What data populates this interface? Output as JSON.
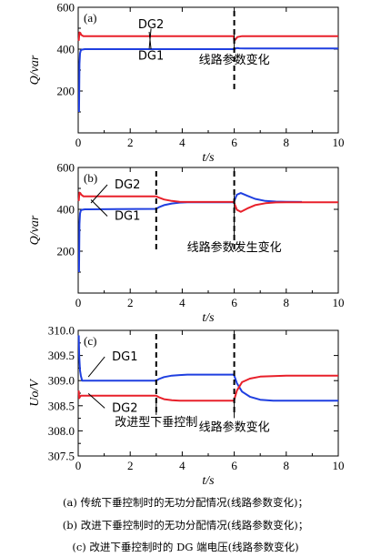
{
  "figure": {
    "captions": [
      "(a) 传统下垂控制时的无功分配情况(线路参数变化)；",
      "(b) 改进下垂控制时的无功分配情况(线路参数变化)；",
      "(c) 改进下垂控制时的 DG 端电压(线路参数变化)"
    ]
  },
  "colors": {
    "DG1": "#1f3fe0",
    "DG2": "#e8202a",
    "axis": "#000000"
  },
  "chart_data": [
    {
      "type": "line",
      "panel_label": "(a)",
      "xlabel": "t/s",
      "ylabel": "Q/var",
      "xlim": [
        0,
        10
      ],
      "ylim": [
        0,
        600
      ],
      "xticks": [
        0,
        2,
        4,
        6,
        8,
        10
      ],
      "yticks": [
        200,
        400,
        600
      ],
      "ytick_labels": [
        "200",
        "400",
        "600"
      ],
      "grid": false,
      "series": [
        {
          "name": "DG1",
          "x": [
            0.03,
            0.05,
            0.07,
            0.1,
            0.15,
            0.25,
            0.4,
            5.98,
            6.0,
            6.1,
            6.2,
            6.4,
            10
          ],
          "y": [
            100,
            330,
            380,
            395,
            398,
            400,
            400,
            400,
            400,
            405,
            404,
            403,
            403
          ]
        },
        {
          "name": "DG2",
          "x": [
            0.02,
            0.05,
            0.08,
            0.12,
            0.2,
            0.3,
            5.98,
            6.0,
            6.06,
            6.12,
            6.3,
            10
          ],
          "y": [
            440,
            480,
            478,
            468,
            462,
            462,
            462,
            440,
            448,
            458,
            462,
            462
          ]
        }
      ],
      "annotations": [
        {
          "text": "DG2",
          "x": 2.8,
          "y": 500
        },
        {
          "text": "DG1",
          "x": 2.8,
          "y": 350
        },
        {
          "text": "线路参数变化",
          "x": 6.0,
          "y": 330
        }
      ],
      "vlines": [
        6.0
      ]
    },
    {
      "type": "line",
      "panel_label": "(b)",
      "xlabel": "t/s",
      "ylabel": "Q/var",
      "xlim": [
        0,
        10
      ],
      "ylim": [
        0,
        600
      ],
      "xticks": [
        0,
        2,
        4,
        6,
        8,
        10
      ],
      "yticks": [
        200,
        400,
        600
      ],
      "ytick_labels": [
        "200",
        "400",
        "600"
      ],
      "grid": false,
      "series": [
        {
          "name": "DG1",
          "x": [
            0.03,
            0.05,
            0.07,
            0.1,
            0.15,
            0.25,
            0.4,
            3.0,
            3.1,
            3.3,
            3.6,
            3.9,
            4.2,
            5.98,
            6.0,
            6.1,
            6.25,
            6.5,
            6.8,
            7.2,
            7.6,
            8.0,
            8.6
          ],
          "y": [
            100,
            330,
            380,
            395,
            398,
            400,
            400,
            402,
            410,
            420,
            428,
            432,
            434,
            434,
            440,
            470,
            478,
            465,
            450,
            440,
            437,
            436,
            435
          ]
        },
        {
          "name": "DG2",
          "x": [
            0.02,
            0.05,
            0.08,
            0.12,
            0.2,
            0.3,
            3.0,
            3.1,
            3.3,
            3.6,
            3.9,
            4.2,
            5.98,
            6.0,
            6.1,
            6.25,
            6.5,
            6.8,
            7.2,
            7.6,
            8.0,
            10
          ],
          "y": [
            440,
            480,
            478,
            470,
            462,
            462,
            462,
            456,
            447,
            440,
            436,
            435,
            435,
            430,
            398,
            388,
            404,
            420,
            429,
            433,
            434,
            434
          ]
        }
      ],
      "annotations": [
        {
          "text": "DG2",
          "x": 1.4,
          "y": 500
        },
        {
          "text": "DG1",
          "x": 1.4,
          "y": 350
        },
        {
          "text": "线路参数发生变化",
          "x": 6.0,
          "y": 200
        }
      ],
      "vlines": [
        3.0,
        6.0
      ]
    },
    {
      "type": "line",
      "panel_label": "(c)",
      "xlabel": "t/s",
      "ylabel": "Uo/V",
      "xlim": [
        0,
        10
      ],
      "ylim": [
        307.5,
        310.0
      ],
      "xticks": [
        0,
        2,
        4,
        6,
        8,
        10
      ],
      "yticks": [
        307.5,
        308.0,
        308.5,
        309.0,
        309.5,
        310.0
      ],
      "ytick_labels": [
        "307.5",
        "308.0",
        "308.5",
        "309.0",
        "309.5",
        "310.0"
      ],
      "grid": false,
      "series": [
        {
          "name": "DG1",
          "x": [
            0.02,
            0.04,
            0.07,
            0.1,
            0.15,
            0.25,
            3.0,
            3.1,
            3.3,
            3.6,
            3.9,
            4.2,
            5.98,
            6.0,
            6.1,
            6.3,
            6.6,
            7.0,
            7.5,
            8.0,
            10
          ],
          "y": [
            309.9,
            309.5,
            309.2,
            309.1,
            309.0,
            309.0,
            309.0,
            309.03,
            309.07,
            309.1,
            309.11,
            309.12,
            309.12,
            309.1,
            308.95,
            308.78,
            308.68,
            308.62,
            308.6,
            308.6,
            308.6
          ]
        },
        {
          "name": "DG2",
          "x": [
            0.02,
            0.04,
            0.07,
            0.1,
            0.15,
            0.25,
            3.0,
            3.1,
            3.3,
            3.6,
            3.9,
            4.2,
            5.98,
            6.0,
            6.1,
            6.3,
            6.6,
            7.0,
            7.5,
            8.0,
            10
          ],
          "y": [
            308.8,
            308.65,
            308.68,
            308.7,
            308.7,
            308.7,
            308.7,
            308.67,
            308.63,
            308.61,
            308.6,
            308.6,
            308.6,
            308.62,
            308.8,
            308.97,
            309.04,
            309.08,
            309.09,
            309.1,
            309.1
          ]
        }
      ],
      "annotations": [
        {
          "text": "DG1",
          "x": 1.3,
          "y": 309.4
        },
        {
          "text": "DG2",
          "x": 1.3,
          "y": 308.38
        },
        {
          "text": "改进型下垂控制",
          "x": 3.0,
          "y": 308.1
        },
        {
          "text": "线路参数变化",
          "x": 6.0,
          "y": 308.0
        }
      ],
      "vlines": [
        3.0,
        6.0
      ]
    }
  ]
}
